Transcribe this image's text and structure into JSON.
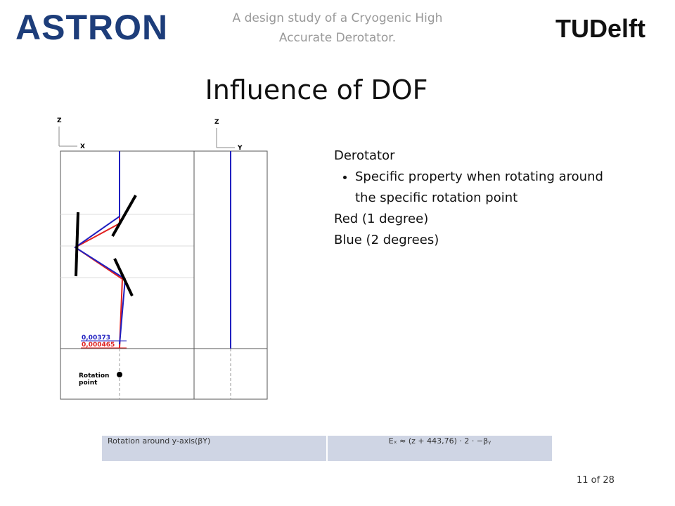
{
  "header": {
    "logo_left": "ASTRON",
    "subtitle": "A design study of a Cryogenic High Accurate Derotator.",
    "logo_right": "TUDelft"
  },
  "title": "Influence of DOF",
  "figure": {
    "axis_left": [
      "Z",
      "X"
    ],
    "axis_right": [
      "Z",
      "Y"
    ],
    "label_blue": "0,00373",
    "label_red": "0,000465",
    "rotation_point": "Rotation point"
  },
  "text": {
    "heading": "Derotator",
    "bullet": "Specific property when rotating around the specific rotation point",
    "red": "Red (1 degree)",
    "blue": "Blue (2 degrees)"
  },
  "table": {
    "rows": [
      [
        "Rotation around y-axis(βY)",
        "Eₓ ≈ (z + 443,76) · 2 · −βᵧ"
      ]
    ]
  },
  "footer": {
    "page": "11 of 28"
  }
}
